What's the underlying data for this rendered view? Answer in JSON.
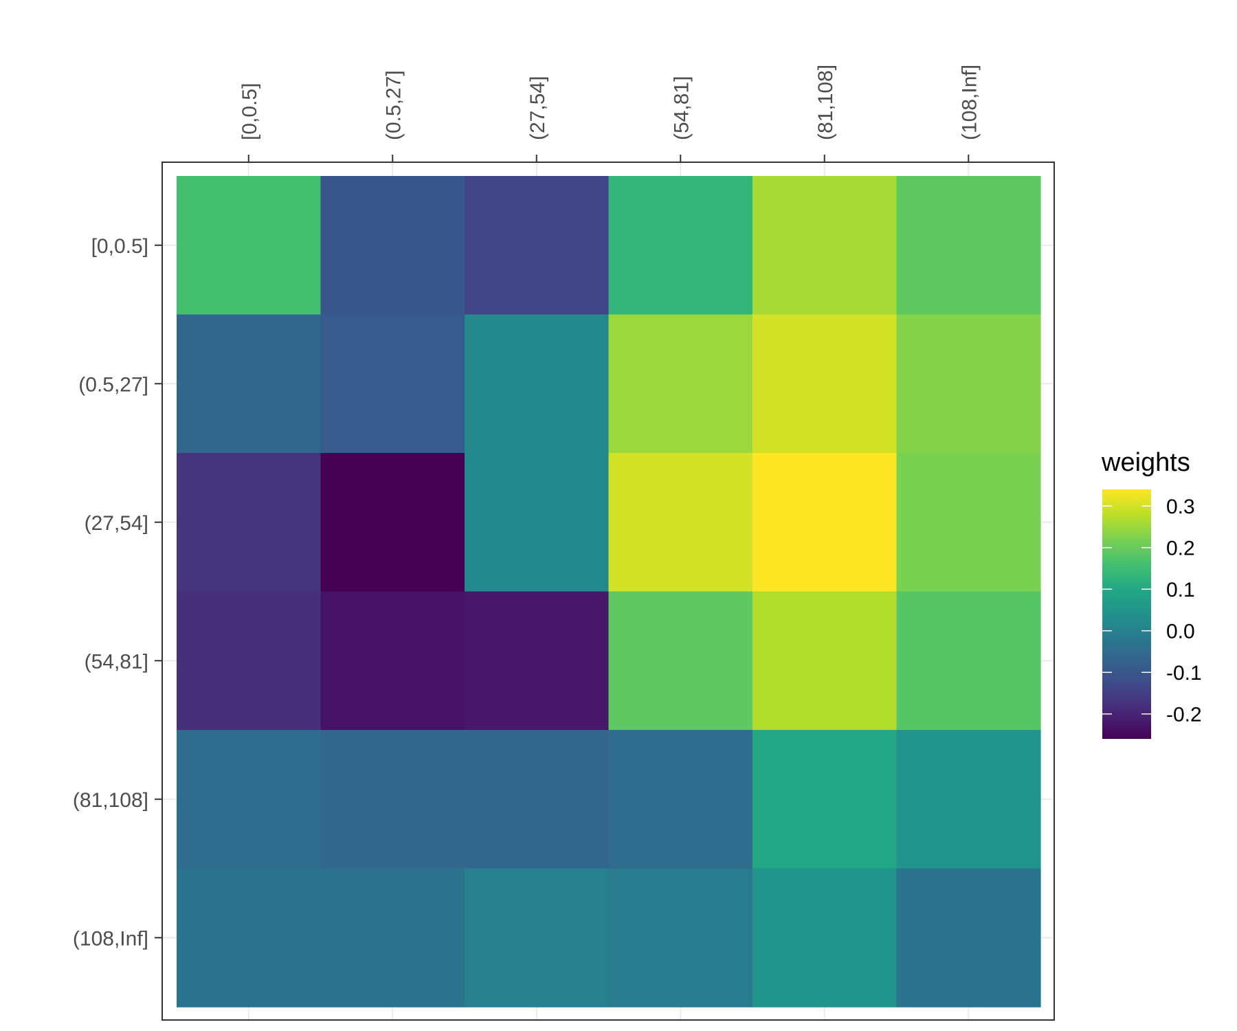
{
  "chart_data": {
    "type": "heatmap",
    "x_categories": [
      "[0,0.5]",
      "(0.5,27]",
      "(27,54]",
      "(54,81]",
      "(81,108]",
      "(108,Inf]"
    ],
    "y_categories": [
      "[0,0.5]",
      "(0.5,27]",
      "(27,54]",
      "(54,81]",
      "(81,108]",
      "(108,Inf]"
    ],
    "x_axis_position": "top",
    "values": [
      [
        0.16,
        -0.1,
        -0.14,
        0.13,
        0.26,
        0.19
      ],
      [
        -0.06,
        -0.09,
        0.02,
        0.25,
        0.3,
        0.23
      ],
      [
        -0.17,
        -0.26,
        0.02,
        0.3,
        0.34,
        0.22
      ],
      [
        -0.18,
        -0.23,
        -0.22,
        0.19,
        0.27,
        0.18
      ],
      [
        -0.05,
        -0.06,
        -0.06,
        -0.05,
        0.1,
        0.05
      ],
      [
        -0.03,
        -0.03,
        0.0,
        -0.01,
        0.05,
        -0.03
      ]
    ],
    "value_range": [
      -0.26,
      0.34
    ],
    "legend": {
      "title": "weights",
      "ticks": [
        0.3,
        0.2,
        0.1,
        0.0,
        -0.1,
        -0.2
      ],
      "tick_labels": [
        "0.3",
        "0.2",
        "0.1",
        "0.0",
        "-0.1",
        "-0.2"
      ],
      "position": "right"
    },
    "colorscale": "viridis",
    "grid": true,
    "panel_border": true
  }
}
